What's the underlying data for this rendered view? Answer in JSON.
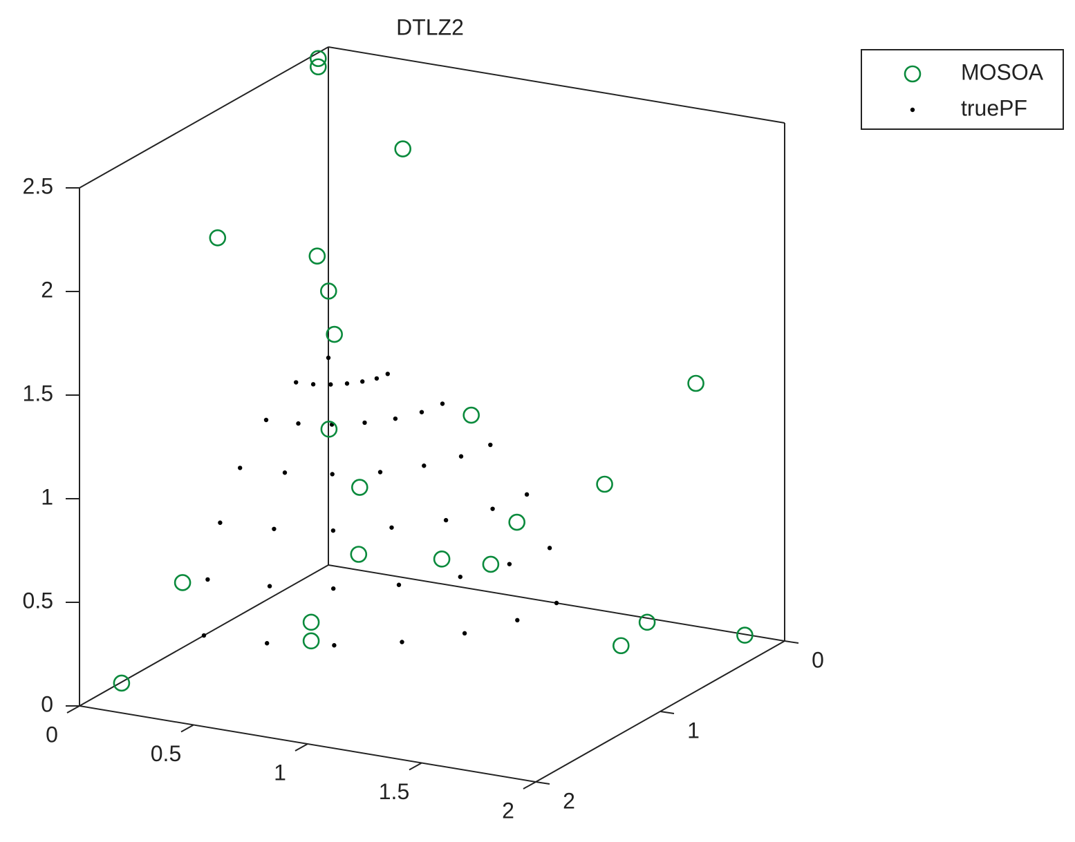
{
  "chart_data": {
    "type": "scatter3d",
    "title": "DTLZ2",
    "xlim": [
      0,
      2
    ],
    "ylim": [
      0,
      2
    ],
    "zlim": [
      0,
      2.5
    ],
    "xticks": [
      0,
      0.5,
      1,
      1.5,
      2
    ],
    "yticks": [
      0,
      1,
      2
    ],
    "zticks": [
      0,
      0.5,
      1,
      1.5,
      2,
      2.5
    ],
    "series": [
      {
        "name": "MOSOA",
        "color": "#0a8a3c",
        "marker": "circle",
        "x": [
          0.01,
          0.01,
          0.49,
          0.06,
          0.06,
          0.11,
          0.19,
          1.72,
          0.79,
          0.33,
          1.32,
          0.41,
          0.99,
          0.46,
          0.77,
          0.93,
          0.07,
          0.47,
          1.67,
          0.47,
          1.61,
          1.88,
          0.13
        ],
        "y": [
          0.1,
          0.1,
          0.3,
          1.0,
          0.2,
          0.2,
          0.3,
          0.2,
          0.3,
          0.6,
          0.2,
          0.5,
          0.3,
          0.6,
          0.5,
          0.4,
          1.3,
          1.0,
          0.5,
          1.0,
          0.6,
          0.1,
          1.9
        ],
        "z": [
          2.48,
          2.44,
          2.2,
          1.93,
          1.57,
          1.41,
          1.25,
          1.26,
          0.97,
          0.92,
          0.7,
          0.62,
          0.49,
          0.34,
          0.34,
          0.31,
          0.37,
          0.15,
          0.2,
          0.06,
          0.11,
          0.04,
          0.1
        ]
      },
      {
        "name": "truePF",
        "color": "#000000",
        "marker": "dot",
        "x": [
          0.26,
          0.25,
          0.22,
          0.18,
          0.13,
          0.07,
          0,
          0.5,
          0.48,
          0.43,
          0.35,
          0.25,
          0.13,
          0,
          0.71,
          0.68,
          0.61,
          0.5,
          0.35,
          0.18,
          0,
          0.87,
          0.84,
          0.75,
          0.61,
          0.43,
          0.22,
          0,
          0.97,
          0.93,
          0.84,
          0.68,
          0.48,
          0.25,
          0,
          1,
          0.97,
          0.87,
          0.71,
          0.5,
          0.26,
          0,
          0
        ],
        "y": [
          0,
          0.07,
          0.13,
          0.18,
          0.22,
          0.25,
          0.26,
          0,
          0.13,
          0.25,
          0.35,
          0.43,
          0.48,
          0.5,
          0,
          0.18,
          0.35,
          0.5,
          0.61,
          0.68,
          0.71,
          0,
          0.22,
          0.43,
          0.61,
          0.75,
          0.84,
          0.87,
          0,
          0.25,
          0.48,
          0.68,
          0.84,
          0.93,
          0.97,
          0,
          0.26,
          0.5,
          0.71,
          0.87,
          0.97,
          1,
          0
        ],
        "z": [
          0.97,
          0.97,
          0.97,
          0.97,
          0.97,
          0.97,
          0.97,
          0.87,
          0.87,
          0.87,
          0.87,
          0.87,
          0.87,
          0.87,
          0.71,
          0.71,
          0.71,
          0.71,
          0.71,
          0.71,
          0.71,
          0.5,
          0.5,
          0.5,
          0.5,
          0.5,
          0.5,
          0.5,
          0.26,
          0.26,
          0.26,
          0.26,
          0.26,
          0.26,
          0.26,
          0,
          0,
          0,
          0,
          0,
          0,
          0,
          1
        ]
      }
    ]
  }
}
